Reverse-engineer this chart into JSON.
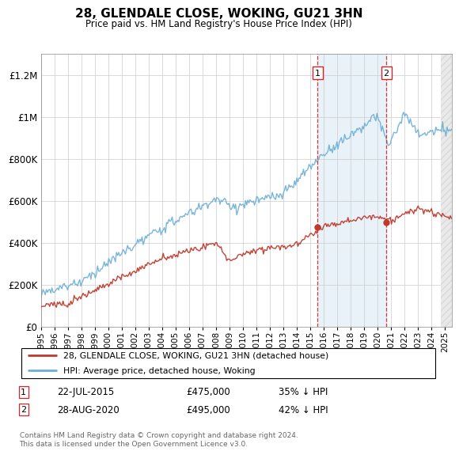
{
  "title": "28, GLENDALE CLOSE, WOKING, GU21 3HN",
  "subtitle": "Price paid vs. HM Land Registry's House Price Index (HPI)",
  "ylim": [
    0,
    1300000
  ],
  "yticks": [
    0,
    200000,
    400000,
    600000,
    800000,
    1000000,
    1200000
  ],
  "hpi_color": "#6baed6",
  "price_color": "#c0392b",
  "sale1_x": 2015.55,
  "sale1_y": 475000,
  "sale2_x": 2020.66,
  "sale2_y": 495000,
  "vline1_x": 2015.55,
  "vline2_x": 2020.66,
  "legend_label1": "28, GLENDALE CLOSE, WOKING, GU21 3HN (detached house)",
  "legend_label2": "HPI: Average price, detached house, Woking",
  "footnote": "Contains HM Land Registry data © Crown copyright and database right 2024.\nThis data is licensed under the Open Government Licence v3.0.",
  "xmin": 1995,
  "xmax": 2025.5
}
